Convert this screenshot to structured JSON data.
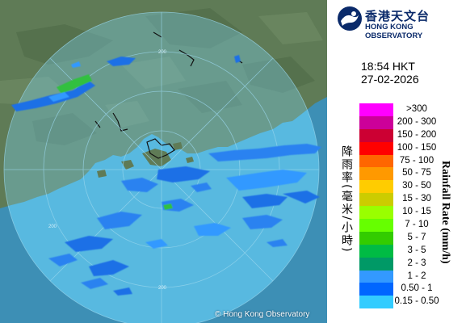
{
  "header": {
    "org_name_cn": "香港天文台",
    "org_name_en": "HONG KONG OBSERVATORY"
  },
  "timestamp": {
    "time": "18:54 HKT",
    "date": "27-02-2026"
  },
  "legend": {
    "title_cn": "降雨率(毫米/小時)",
    "title_en": "Rainfall Rate (mm/h)",
    "bins": [
      {
        "label": ">300",
        "color": "#ff00ff"
      },
      {
        "label": "200 - 300",
        "color": "#cc0099"
      },
      {
        "label": "150 - 200",
        "color": "#cc0033"
      },
      {
        "label": "100 - 150",
        "color": "#ff0000"
      },
      {
        "label": "75 - 100",
        "color": "#ff6600"
      },
      {
        "label": "50 - 75",
        "color": "#ff9900"
      },
      {
        "label": "30 - 50",
        "color": "#ffcc00"
      },
      {
        "label": "15 - 30",
        "color": "#cccc00"
      },
      {
        "label": "10 - 15",
        "color": "#99ff00"
      },
      {
        "label": "7 - 10",
        "color": "#66ff00"
      },
      {
        "label": "5 - 7",
        "color": "#33cc00"
      },
      {
        "label": "3 - 5",
        "color": "#00bb44"
      },
      {
        "label": "2 - 3",
        "color": "#009966"
      },
      {
        "label": "1 - 2",
        "color": "#3399ff"
      },
      {
        "label": "0.50 - 1",
        "color": "#0066ff"
      },
      {
        "label": "0.15 - 0.50",
        "color": "#33ccff"
      }
    ]
  },
  "map": {
    "range_labels": [
      "200",
      "200",
      "200"
    ],
    "credit": "© Hong Kong Observatory",
    "colors": {
      "sea": "#3f98bd",
      "land": "#5e7a55",
      "radar_coverage": "#6fc8e8"
    }
  }
}
